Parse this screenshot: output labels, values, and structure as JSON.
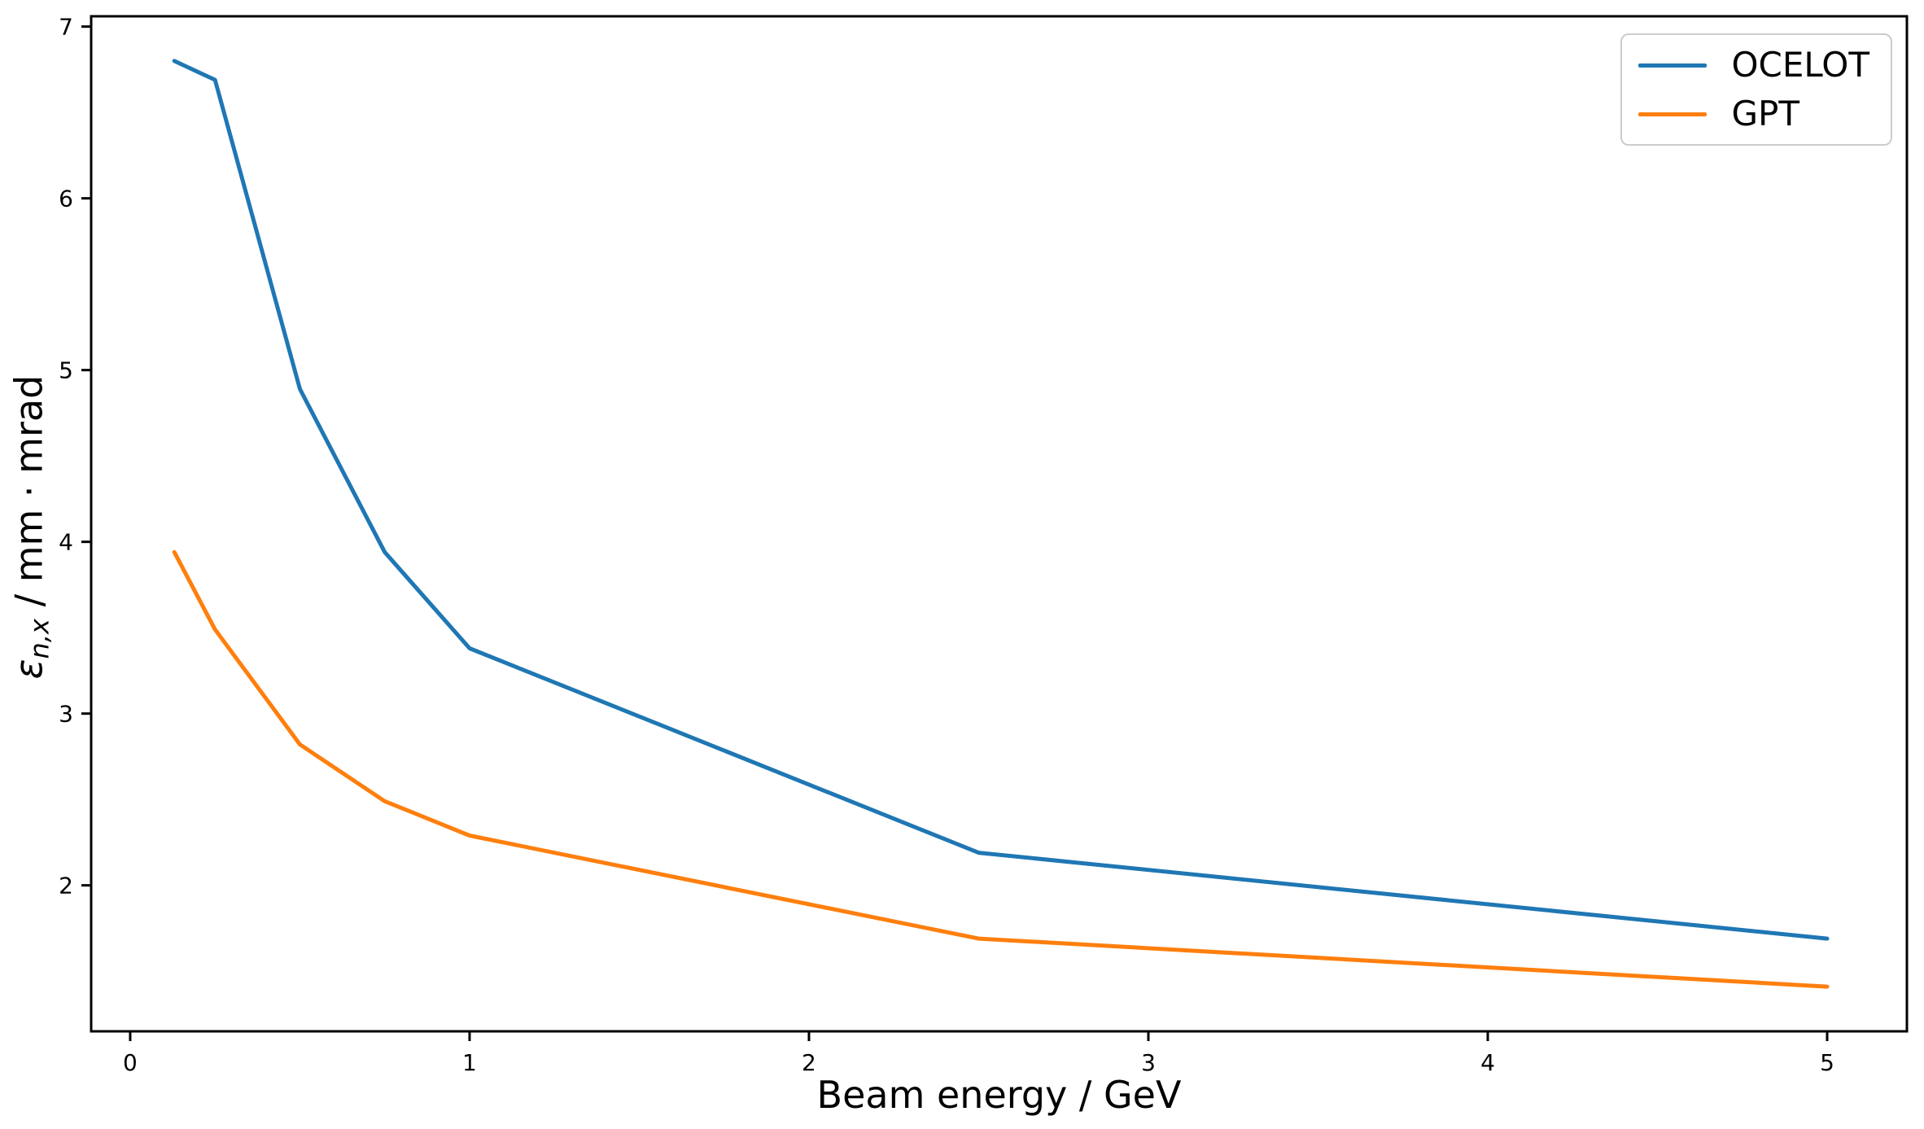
{
  "chart_data": {
    "type": "line",
    "x": [
      0.13,
      0.25,
      0.5,
      0.75,
      1.0,
      2.5,
      5.0
    ],
    "series": [
      {
        "name": "OCELOT",
        "color": "#1f77b4",
        "values": [
          6.8,
          6.69,
          4.89,
          3.94,
          3.38,
          2.19,
          1.69
        ]
      },
      {
        "name": "GPT",
        "color": "#ff7f0e",
        "values": [
          3.94,
          3.49,
          2.82,
          2.49,
          2.29,
          1.69,
          1.41
        ]
      }
    ],
    "title": "",
    "xlabel": "Beam energy / GeV",
    "ylabel": {
      "symbol": "ε",
      "subscript": "n,x",
      "rest": " / mm · mrad"
    },
    "xlim": [
      -0.115,
      5.235
    ],
    "ylim": [
      1.15,
      7.06
    ],
    "xticks": [
      0,
      1,
      2,
      3,
      4,
      5
    ],
    "yticks": [
      2,
      3,
      4,
      5,
      6,
      7
    ],
    "grid": false,
    "legend_position": "upper right",
    "axis_color": "#000000",
    "background_color": "#ffffff"
  }
}
